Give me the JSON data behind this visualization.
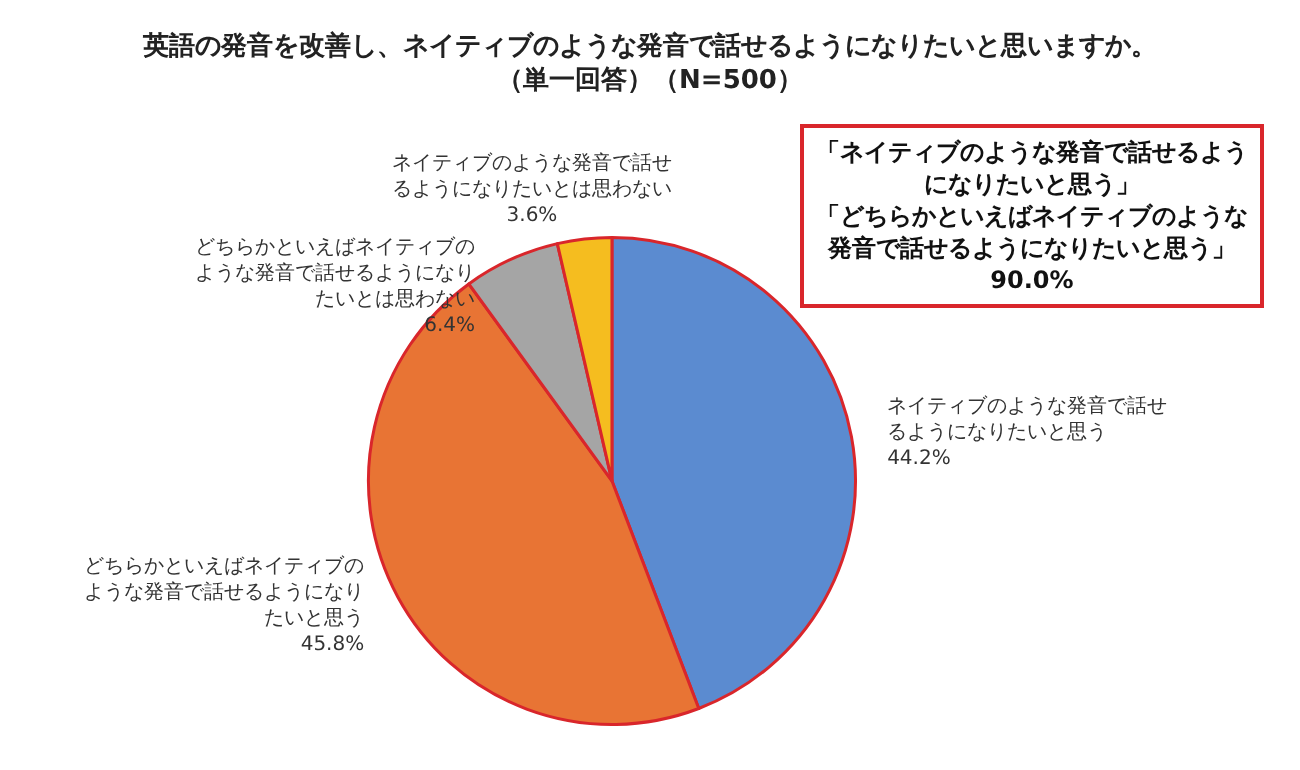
{
  "chart_data": {
    "type": "pie",
    "title": "英語の発音を改善し、ネイティブのような発音で話せるようになりたいと思いますか。",
    "subtitle": "（単一回答）（N=500）",
    "categories": [
      "ネイティブのような発音で話せるようになりたいと思う",
      "どちらかといえばネイティブのような発音で話せるようになりたいと思う",
      "どちらかといえばネイティブのような発音で話せるようになりたいとは思わない",
      "ネイティブのような発音で話せるようになりたいとは思わない"
    ],
    "values": [
      44.2,
      45.8,
      6.4,
      3.6
    ],
    "value_labels": [
      "44.2%",
      "45.8%",
      "6.4%",
      "3.6%"
    ],
    "colors": [
      "#5b8bd0",
      "#e87434",
      "#a5a5a5",
      "#f5bd1f"
    ],
    "annotations": [
      "「ネイティブのような発音で話せるようになりたいと思う」",
      "「どちらかといえばネイティブのような発音で話せるようになりたいと思う」",
      "90.0%"
    ],
    "legend": false
  }
}
